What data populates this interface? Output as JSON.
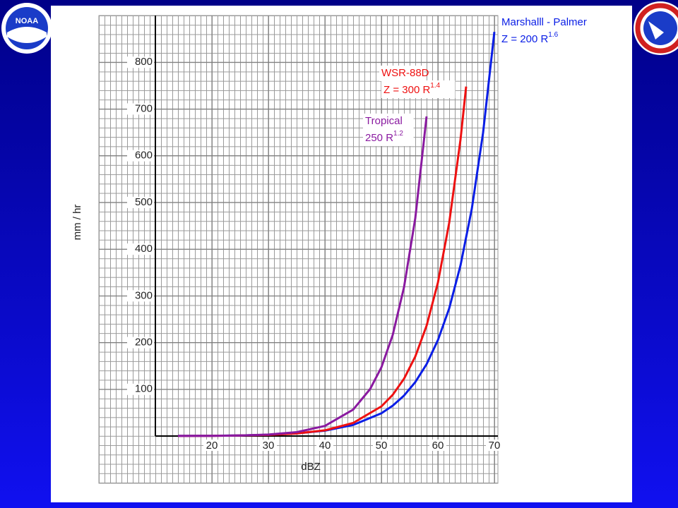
{
  "logo": "NOAA",
  "chart_data": {
    "type": "line",
    "x_label": "dBZ",
    "y_label": "mm / hr",
    "xlim": [
      10,
      70
    ],
    "xticks": [
      20,
      30,
      40,
      50,
      60,
      70
    ],
    "ylim": [
      0,
      900
    ],
    "yticks": [
      100,
      200,
      300,
      400,
      500,
      600,
      700,
      800
    ],
    "grid": true,
    "series": [
      {
        "name": "Marshalll - Palmer",
        "formula": "Z = 200 R",
        "exponent": "1.6",
        "color": "#0a1ee6",
        "x": [
          14,
          20,
          25,
          30,
          35,
          40,
          45,
          50,
          52,
          54,
          56,
          58,
          60,
          62,
          64,
          66,
          68,
          70
        ],
        "values": [
          0.27,
          0.65,
          1.33,
          2.73,
          5.6,
          11.5,
          23.7,
          48.6,
          64.9,
          86.5,
          115.3,
          153.8,
          205,
          273,
          365,
          486,
          649,
          865
        ]
      },
      {
        "name": "WSR-88D",
        "formula": "Z = 300 R",
        "exponent": "1.4",
        "color": "#ee1111",
        "x": [
          14,
          20,
          25,
          30,
          35,
          40,
          45,
          50,
          52,
          54,
          56,
          58,
          60,
          62,
          64,
          65
        ],
        "values": [
          0.17,
          0.46,
          1.04,
          2.36,
          5.4,
          12.2,
          27.9,
          63.4,
          88.1,
          122.4,
          170,
          236,
          328,
          456,
          634,
          748
        ]
      },
      {
        "name": "Tropical",
        "formula": "250 R",
        "exponent": "1.2",
        "color": "#8a1aa0",
        "x": [
          14,
          20,
          25,
          30,
          35,
          40,
          45,
          48,
          50,
          52,
          54,
          56,
          58
        ],
        "values": [
          0.15,
          0.47,
          1.22,
          3.17,
          8.3,
          21.6,
          56.5,
          100.4,
          147,
          216,
          318,
          466,
          684
        ]
      }
    ]
  }
}
